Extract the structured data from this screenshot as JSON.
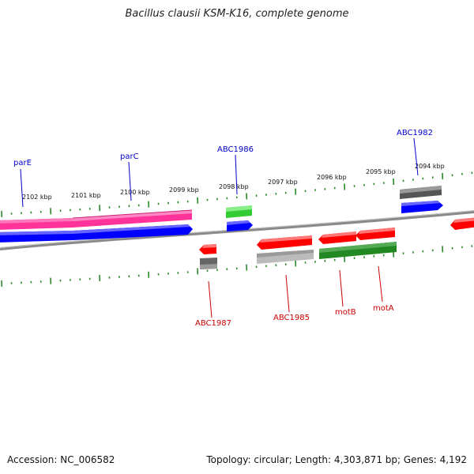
{
  "title": "Bacillus clausii KSM-K16, complete genome",
  "footer": {
    "accession": "Accession: NC_006582",
    "summary": "Topology: circular; Length: 4,303,871 bp; Genes: 4,192"
  },
  "colors": {
    "backbone": "#8a8a8a",
    "tick": "#2a8a2a",
    "forward_label": "#0000cc",
    "reverse_label": "#cc0000",
    "pink": "#ff3399",
    "blue": "#0000ff",
    "green": "#33cc33",
    "darkgreen": "#228822",
    "red": "#ff0000",
    "gray": "#666666",
    "lightgray": "#bbbbbb"
  },
  "scale_labels": [
    "2102 kbp",
    "2101 kbp",
    "2100 kbp",
    "2099 kbp",
    "2098 kbp",
    "2097 kbp",
    "2096 kbp",
    "2095 kbp",
    "2094 kbp"
  ],
  "gene_labels": {
    "forward": [
      "parE",
      "parC",
      "ABC1986",
      "ABC1982"
    ],
    "reverse": [
      "ABC1987",
      "ABC1985",
      "motB",
      "motA"
    ]
  }
}
